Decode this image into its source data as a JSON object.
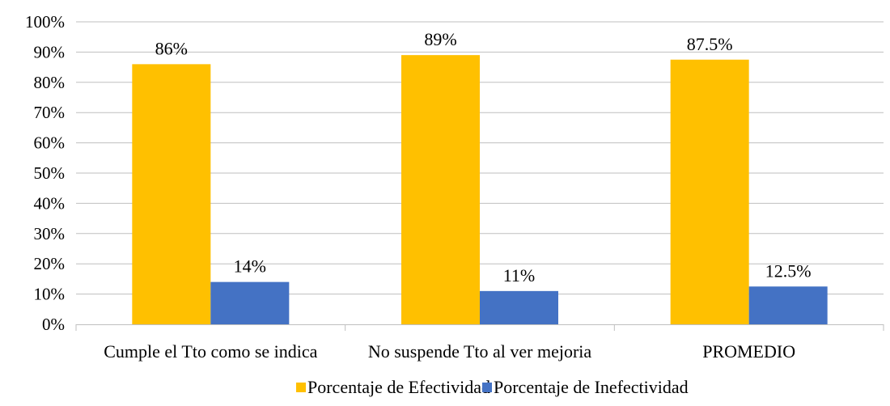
{
  "chart_data": {
    "type": "bar",
    "categories": [
      "Cumple el Tto como se indica",
      "No suspende Tto al ver mejoria",
      "PROMEDIO"
    ],
    "series": [
      {
        "name": "Porcentaje de Efectividad",
        "values": [
          86,
          89,
          87.5
        ],
        "labels": [
          "86%",
          "89%",
          "87.5%"
        ],
        "color": "#FFC000"
      },
      {
        "name": "Porcentaje de Inefectividad",
        "values": [
          14,
          11,
          12.5
        ],
        "labels": [
          "14%",
          "11%",
          "12.5%"
        ],
        "color": "#4472C4"
      }
    ],
    "ylim": [
      0,
      100
    ],
    "yticks": [
      0,
      10,
      20,
      30,
      40,
      50,
      60,
      70,
      80,
      90,
      100
    ],
    "ytick_labels": [
      "0%",
      "10%",
      "20%",
      "30%",
      "40%",
      "50%",
      "60%",
      "70%",
      "80%",
      "90%",
      "100%"
    ],
    "grid": true,
    "gridline_color": "#BFBFBF",
    "legend_position": "bottom"
  }
}
